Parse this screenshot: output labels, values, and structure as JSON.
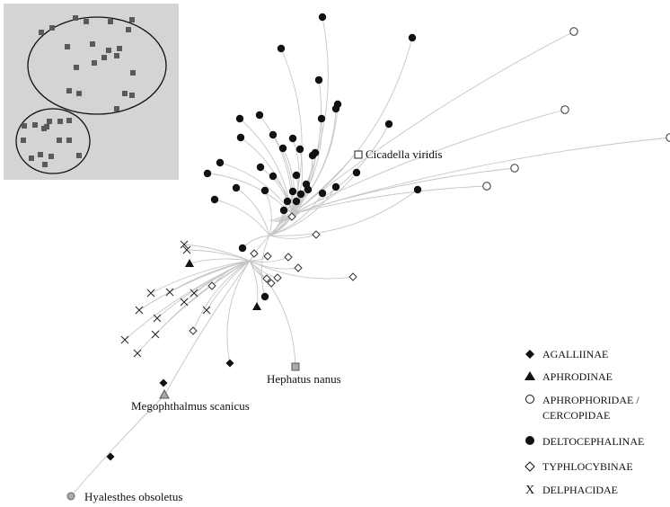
{
  "labels": {
    "cicadella": "Cicadella viridis",
    "hephatus": "Hephatus nanus",
    "megophthalmus": "Megophthalmus scanicus",
    "hyalesthes": "Hyalesthes obsoletus"
  },
  "legend": [
    {
      "name": "AGALLIINAE",
      "symbol": "filled-diamond"
    },
    {
      "name": "APHRODINAE",
      "symbol": "filled-triangle"
    },
    {
      "name": "APHROPHORIDAE /",
      "name2": "CERCOPIDAE",
      "symbol": "open-circle"
    },
    {
      "name": "DELTOCEPHALINAE",
      "symbol": "filled-circle"
    },
    {
      "name": "TYPHLOCYBINAE",
      "symbol": "open-diamond"
    },
    {
      "name": "DELPHACIDAE",
      "symbol": "cross"
    }
  ]
}
